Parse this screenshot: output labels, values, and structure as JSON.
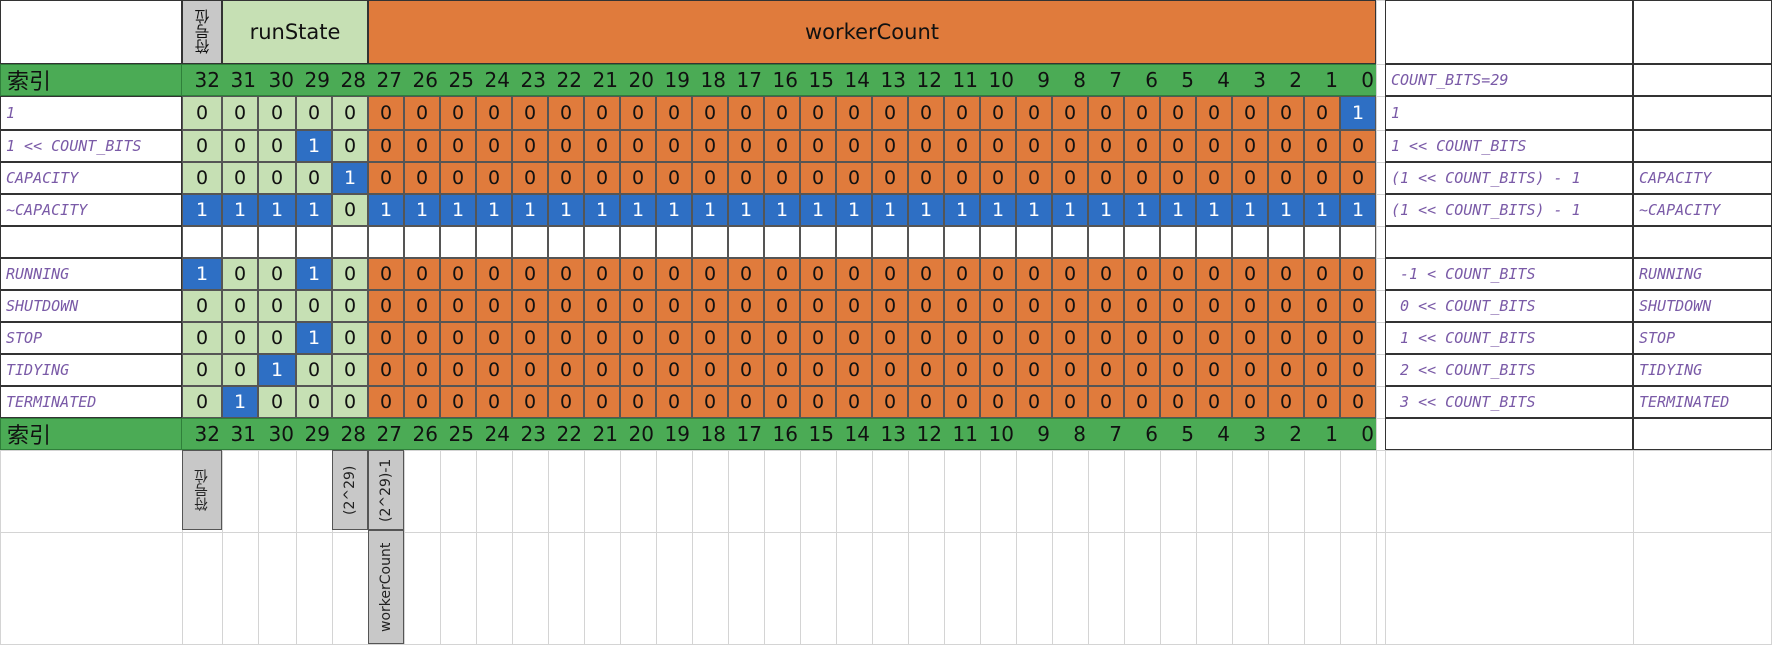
{
  "header": {
    "sign_bit": "符号位",
    "run_state": "runState",
    "worker_count": "workerCount"
  },
  "index_label": "索引",
  "index_numbers": [
    "32",
    "31",
    "30",
    "29",
    "28",
    "27",
    "26",
    "25",
    "24",
    "23",
    "22",
    "21",
    "20",
    "19",
    "18",
    "17",
    "16",
    "15",
    "14",
    "13",
    "12",
    "11",
    "10",
    "9",
    "8",
    "7",
    "6",
    "5",
    "4",
    "3",
    "2",
    "1",
    "0"
  ],
  "rows": [
    {
      "name": "1",
      "bits": "000000000000000000000000000000001",
      "expr": "1",
      "const": ""
    },
    {
      "name": "1 << COUNT_BITS",
      "bits": "000100000000000000000000000000000",
      "expr": "1 << COUNT_BITS",
      "const": ""
    },
    {
      "name": "CAPACITY",
      "bits": "000010000000000000000000000000000",
      "expr": "(1 << COUNT_BITS) - 1",
      "const": "CAPACITY"
    },
    {
      "name": "~CAPACITY",
      "bits": "111101111111111111111111111111111",
      "expr": "(1 << COUNT_BITS) - 1",
      "const": "~CAPACITY"
    },
    {
      "name": "",
      "bits": "",
      "expr": "",
      "const": ""
    },
    {
      "name": "RUNNING",
      "bits": "100100000000000000000000000000000",
      "expr": " -1 < COUNT_BITS",
      "const": "RUNNING"
    },
    {
      "name": "SHUTDOWN",
      "bits": "000000000000000000000000000000000",
      "expr": " 0 << COUNT_BITS",
      "const": "SHUTDOWN"
    },
    {
      "name": "STOP",
      "bits": "000100000000000000000000000000000",
      "expr": " 1 << COUNT_BITS",
      "const": "STOP"
    },
    {
      "name": "TIDYING",
      "bits": "001000000000000000000000000000000",
      "expr": " 2 << COUNT_BITS",
      "const": "TIDYING"
    },
    {
      "name": "TERMINATED",
      "bits": "010000000000000000000000000000000",
      "expr": " 3 << COUNT_BITS",
      "const": "TERMINATED"
    }
  ],
  "count_bits_label": "COUNT_BITS=29",
  "notes": {
    "sign_bit": "符号位",
    "two_pow_29": "(2^29)",
    "two_pow_29_minus_1": "(2^29)-1",
    "worker_count": "workerCount"
  },
  "colors": {
    "green": "#4bab55",
    "light_green": "#c6e0b4",
    "orange": "#e07b3c",
    "blue": "#2e6fc4",
    "gray": "#c8c8c8",
    "label_purple": "#7a5aa7"
  }
}
